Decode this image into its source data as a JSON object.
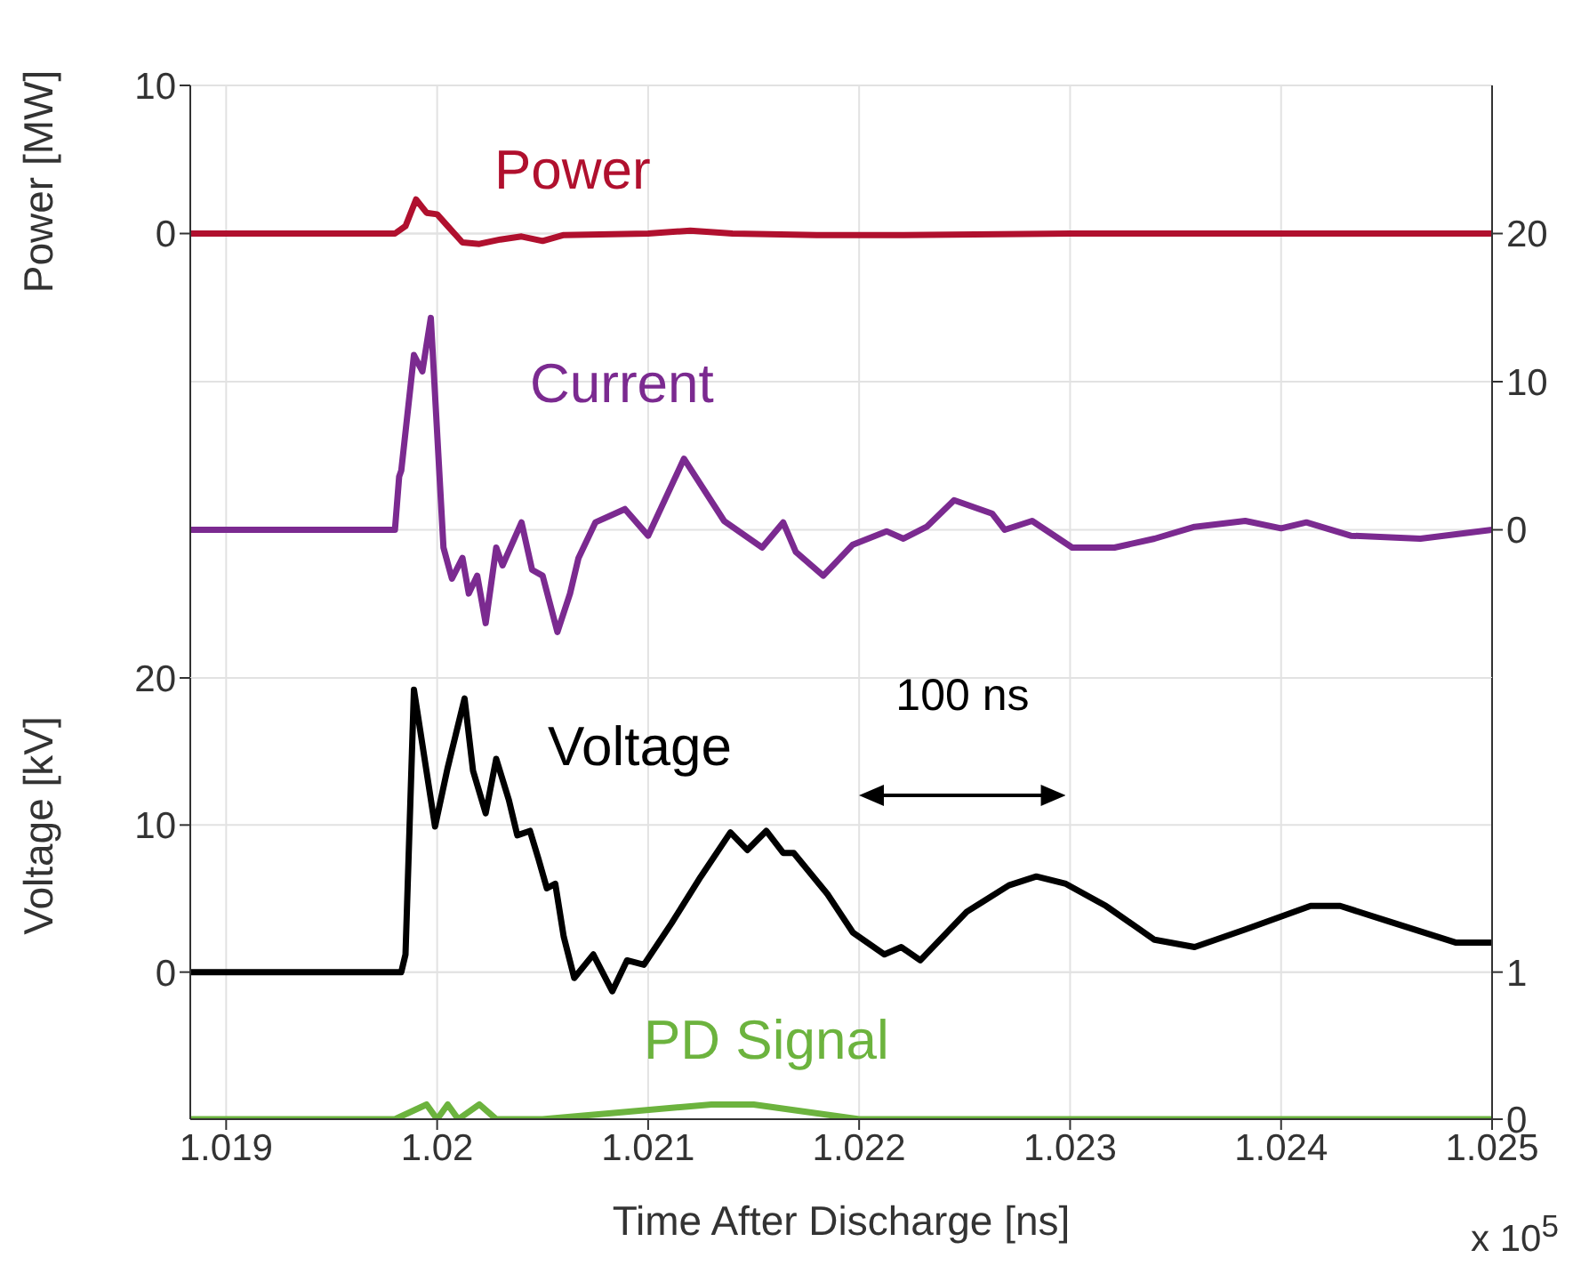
{
  "chart_data": [
    {
      "type": "line",
      "ylabel": "Power [MW]",
      "xlim": [
        1.01883,
        1.025
      ],
      "xticks": [
        1.019,
        1.02,
        1.021,
        1.022,
        1.023,
        1.024,
        1.025
      ],
      "ylim": [
        -30,
        10
      ],
      "yticks": [
        0,
        10
      ],
      "y2lim": [
        -10,
        30
      ],
      "y2ticks": [
        0,
        10,
        20
      ],
      "grid": true,
      "legend": false,
      "marker": "none",
      "line_style": "solid",
      "tick_labels": "y",
      "series": [
        {
          "name": "Power",
          "color": "#b0102e",
          "x": [
            1.01883,
            1.0198,
            1.01985,
            1.0199,
            1.01995,
            1.02,
            1.02005,
            1.02012,
            1.0202,
            1.0203,
            1.0204,
            1.0205,
            1.0206,
            1.021,
            1.0212,
            1.0214,
            1.0218,
            1.0222,
            1.023,
            1.025
          ],
          "values": [
            0,
            0,
            0.5,
            2.3,
            1.4,
            1.3,
            0.5,
            -0.6,
            -0.7,
            -0.4,
            -0.2,
            -0.5,
            -0.1,
            0,
            0.2,
            0,
            -0.1,
            -0.1,
            0,
            0
          ]
        },
        {
          "name": "Current",
          "color": "#7b2a90",
          "axis": "y2",
          "x": [
            1.01883,
            1.0198,
            1.01982,
            1.01983,
            1.01989,
            1.01993,
            1.01997,
            1.02003,
            1.02007,
            1.02012,
            1.02015,
            1.02019,
            1.02023,
            1.02028,
            1.02031,
            1.0204,
            1.02045,
            1.0205,
            1.02057,
            1.02063,
            1.02067,
            1.02075,
            1.02089,
            1.021,
            1.02117,
            1.02136,
            1.02154,
            1.02164,
            1.0217,
            1.02183,
            1.02197,
            1.02213,
            1.02221,
            1.02232,
            1.02245,
            1.02263,
            1.02269,
            1.02282,
            1.02301,
            1.02321,
            1.0234,
            1.02359,
            1.02383,
            1.024,
            1.02412,
            1.02433,
            1.02466,
            1.025
          ],
          "values": [
            0,
            0,
            3.6,
            4,
            11.8,
            10.7,
            14.3,
            -1.2,
            -3.3,
            -1.9,
            -4.3,
            -3.1,
            -6.3,
            -1.2,
            -2.4,
            0.5,
            -2.7,
            -3.1,
            -6.9,
            -4.3,
            -1.9,
            0.5,
            1.4,
            -0.4,
            4.8,
            0.6,
            -1.2,
            0.5,
            -1.5,
            -3.1,
            -1,
            -0.1,
            -0.6,
            0.2,
            2,
            1.1,
            0,
            0.6,
            -1.2,
            -1.2,
            -0.6,
            0.2,
            0.6,
            0.1,
            0.5,
            -0.4,
            -0.6,
            0
          ]
        }
      ]
    },
    {
      "type": "line",
      "xlabel": "Time After Discharge [ns]",
      "ylabel": "Voltage [kV]",
      "annotations": [
        "100 ns",
        "x 10$^{5}$"
      ],
      "xlim": [
        1.01883,
        1.025
      ],
      "xticks": [
        1.019,
        1.02,
        1.021,
        1.022,
        1.023,
        1.024,
        1.025
      ],
      "ylim": [
        -10,
        20
      ],
      "yticks": [
        0,
        10,
        20
      ],
      "y2lim": [
        0,
        3
      ],
      "y2ticks": [
        0,
        1
      ],
      "grid": true,
      "legend": false,
      "marker": "none",
      "line_style": "solid",
      "series": [
        {
          "name": "Voltage",
          "color": "#000000",
          "x": [
            1.01883,
            1.01983,
            1.01985,
            1.01989,
            1.01999,
            1.02005,
            1.02013,
            1.02017,
            1.02023,
            1.02028,
            1.02034,
            1.02038,
            1.02044,
            1.02048,
            1.02052,
            1.02056,
            1.0206,
            1.02065,
            1.02074,
            1.02083,
            1.0209,
            1.02098,
            1.02111,
            1.02125,
            1.02139,
            1.02147,
            1.02156,
            1.02164,
            1.02169,
            1.02185,
            1.02197,
            1.02212,
            1.0222,
            1.02229,
            1.02251,
            1.02271,
            1.02284,
            1.02298,
            1.02317,
            1.0234,
            1.02359,
            1.02383,
            1.02414,
            1.02428,
            1.0245,
            1.02483,
            1.025
          ],
          "values": [
            0,
            0,
            1.2,
            19.2,
            9.9,
            13.9,
            18.6,
            13.7,
            10.8,
            14.5,
            11.7,
            9.3,
            9.6,
            7.7,
            5.7,
            6,
            2.4,
            -0.4,
            1.2,
            -1.3,
            0.8,
            0.5,
            3.3,
            6.5,
            9.5,
            8.3,
            9.6,
            8.1,
            8.1,
            5.3,
            2.7,
            1.2,
            1.7,
            0.8,
            4.1,
            5.9,
            6.5,
            6,
            4.5,
            2.2,
            1.7,
            2.9,
            4.5,
            4.5,
            3.5,
            2,
            2
          ]
        },
        {
          "name": "PD Signal",
          "color": "#6cb33e",
          "axis": "y2",
          "x": [
            1.01883,
            1.0198,
            1.01995,
            1.02,
            1.02005,
            1.0201,
            1.0202,
            1.02028,
            1.0205,
            1.0213,
            1.0215,
            1.022,
            1.025
          ],
          "values": [
            0,
            0,
            0.1,
            0,
            0.1,
            0,
            0.1,
            0,
            0,
            0.1,
            0.1,
            0,
            0
          ]
        }
      ]
    }
  ]
}
